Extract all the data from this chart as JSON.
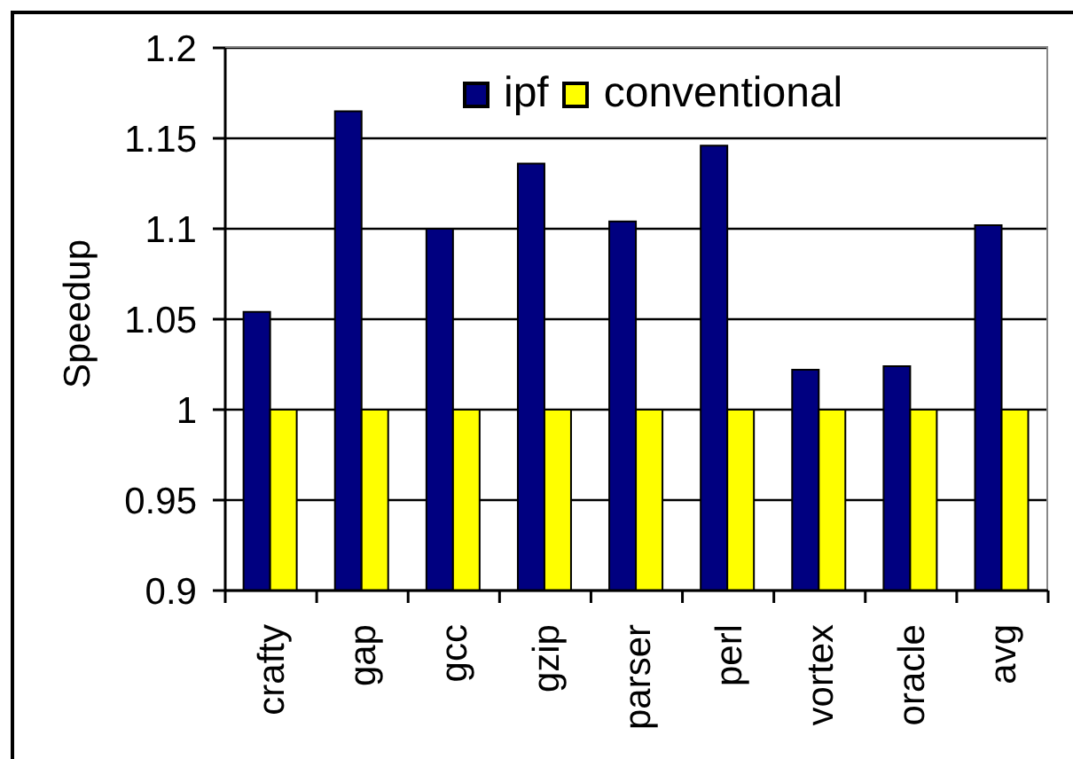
{
  "chart_data": {
    "type": "bar",
    "ylabel": "Speedup",
    "categories": [
      "crafty",
      "gap",
      "gcc",
      "gzip",
      "parser",
      "perl",
      "vortex",
      "oracle",
      "avg"
    ],
    "series": [
      {
        "name": "ipf",
        "color": "#000080",
        "values": [
          1.054,
          1.165,
          1.1,
          1.136,
          1.104,
          1.146,
          1.022,
          1.024,
          1.102
        ]
      },
      {
        "name": "conventional",
        "color": "#ffff00",
        "values": [
          1,
          1,
          1,
          1,
          1,
          1,
          1,
          1,
          1
        ]
      }
    ],
    "ylim": [
      0.9,
      1.2
    ],
    "yticks": [
      0.9,
      0.95,
      1,
      1.05,
      1.1,
      1.15,
      1.2
    ],
    "grid": "y",
    "legend": "top"
  }
}
